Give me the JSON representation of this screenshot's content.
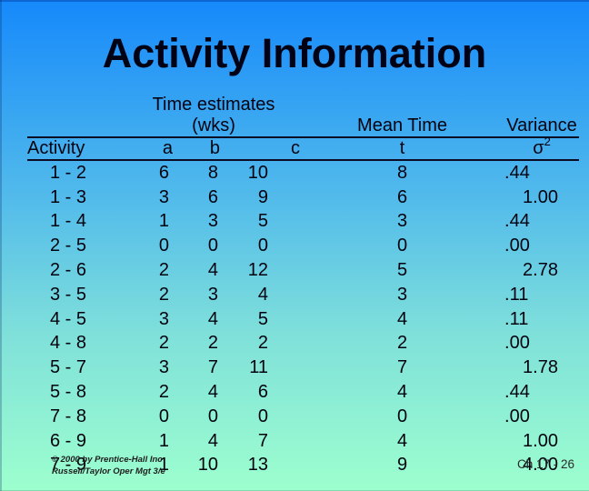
{
  "slide": {
    "title": "Activity Information",
    "footer": {
      "copyright_line1": "© 2000 by Prentice-Hall Inc",
      "copyright_line2": "Russell/Taylor Oper Mgt 3/e",
      "page": "Ch 17 - 26"
    },
    "colors": {
      "background_top": "#1689FB",
      "background_bottom": "#9DFFCE",
      "text": "#02030F",
      "rule_lines": "#0C0C24"
    }
  },
  "chart_data": {
    "type": "table",
    "title": "Activity Information",
    "group_headers": [
      "Time estimates (wks)",
      "Mean Time",
      "Variance"
    ],
    "columns": [
      "Activity",
      "a",
      "b",
      "c",
      "t",
      "σ²"
    ],
    "variance_symbol": {
      "base": "σ",
      "sup": "2"
    },
    "rows": [
      [
        "1 - 2",
        6,
        8,
        10,
        8,
        ".44"
      ],
      [
        "1 - 3",
        3,
        6,
        9,
        6,
        "1.00"
      ],
      [
        "1 - 4",
        1,
        3,
        5,
        3,
        ".44"
      ],
      [
        "2 - 5",
        0,
        0,
        0,
        0,
        ".00"
      ],
      [
        "2 - 6",
        2,
        4,
        12,
        5,
        "2.78"
      ],
      [
        "3 - 5",
        2,
        3,
        4,
        3,
        ".11"
      ],
      [
        "4 - 5",
        3,
        4,
        5,
        4,
        ".11"
      ],
      [
        "4 - 8",
        2,
        2,
        2,
        2,
        ".00"
      ],
      [
        "5 - 7",
        3,
        7,
        11,
        7,
        "1.78"
      ],
      [
        "5 - 8",
        2,
        4,
        6,
        4,
        ".44"
      ],
      [
        "7 - 8",
        0,
        0,
        0,
        0,
        ".00"
      ],
      [
        "6 - 9",
        1,
        4,
        7,
        4,
        "1.00"
      ],
      [
        "7 - 9",
        1,
        10,
        13,
        9,
        "4.00"
      ]
    ]
  }
}
